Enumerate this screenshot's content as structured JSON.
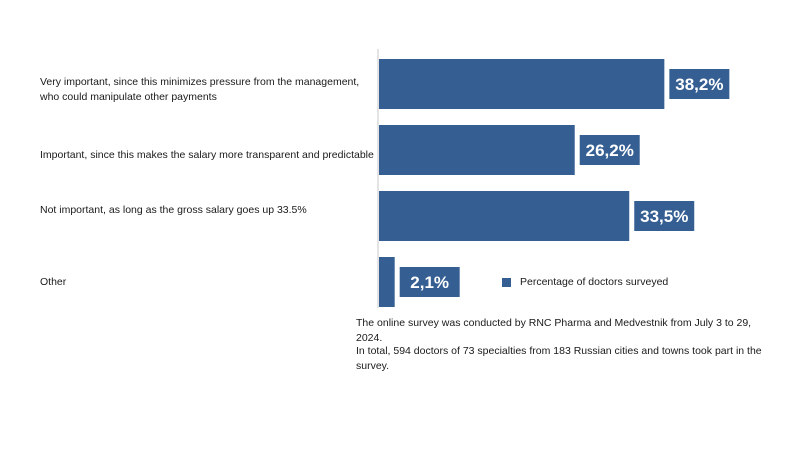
{
  "colors": {
    "bar": "#355f93",
    "axis": "#c8c8c8",
    "label_text": "#ffffff"
  },
  "legend": {
    "label": "Percentage of doctors surveyed"
  },
  "notes": [
    "The online survey was conducted by RNC Pharma and Medvestnik from July 3 to 29, 2024.",
    "In total, 594 doctors of 73 specialties from 183 Russian cities and towns took part in the survey."
  ],
  "chart_data": {
    "type": "bar",
    "orientation": "horizontal",
    "categories": [
      "Very important, since this minimizes pressure from the management, who could manipulate other payments",
      "Important, since this makes the salary more transparent and predictable",
      "Not important, as long as the gross salary goes up 33.5%",
      "Other"
    ],
    "series": [
      {
        "name": "Percentage of doctors surveyed",
        "values": [
          38.2,
          26.2,
          33.5,
          2.1
        ]
      }
    ],
    "data_labels": [
      "38,2%",
      "26,2%",
      "33,5%",
      "2,1%"
    ],
    "xlim": [
      0,
      44
    ],
    "grid": false,
    "legend_position": "right-of-last-bar"
  }
}
